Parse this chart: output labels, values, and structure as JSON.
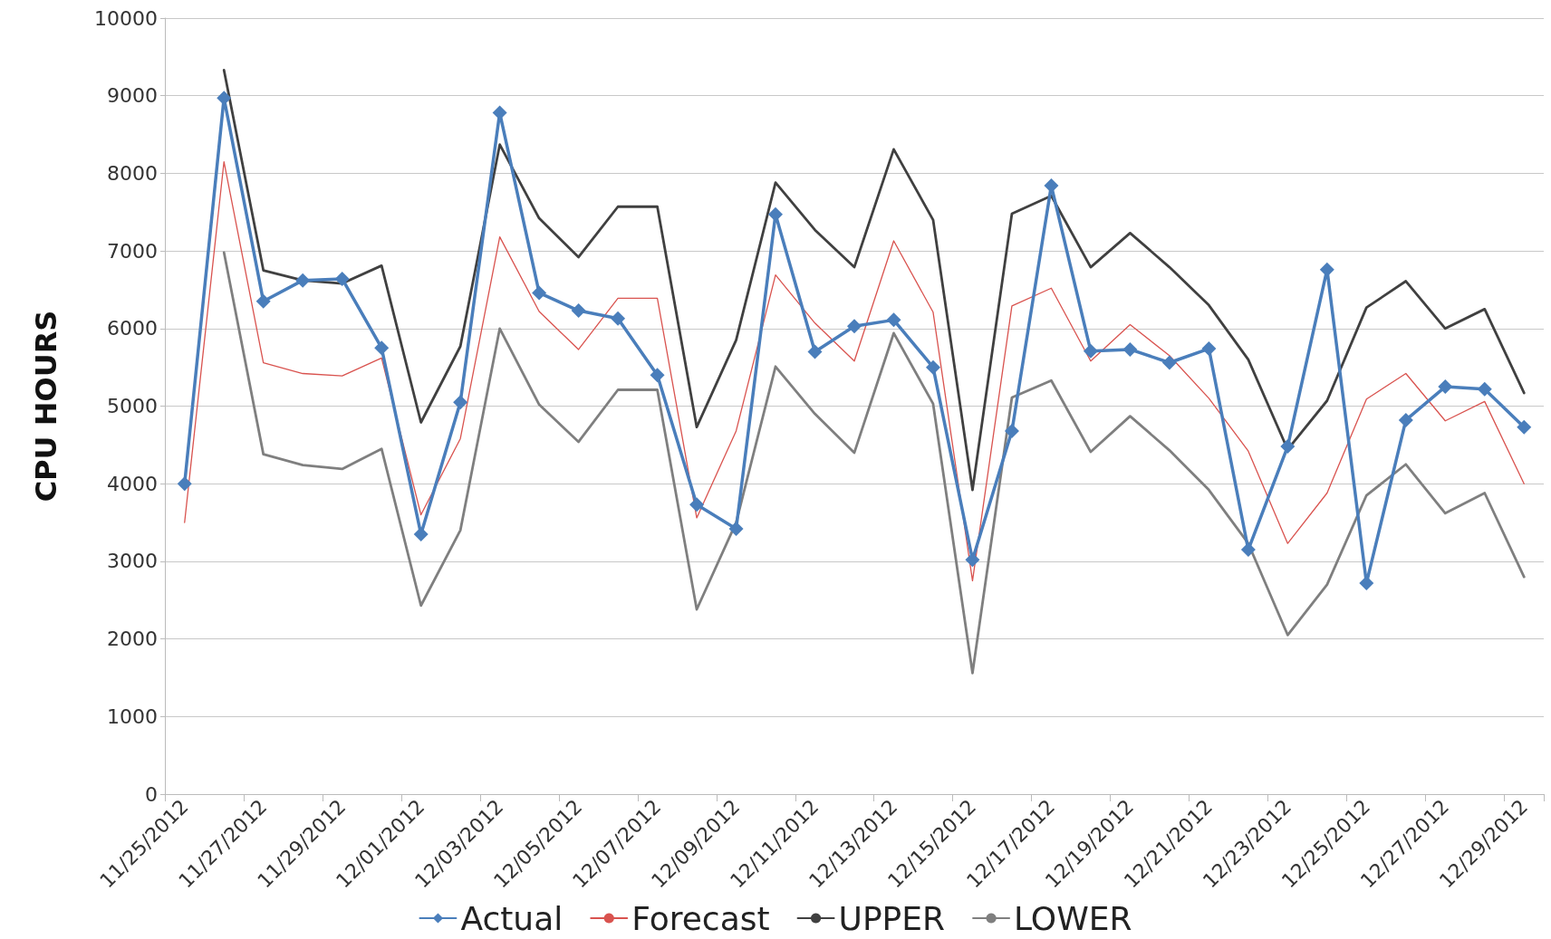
{
  "chart_data": {
    "type": "line",
    "ylabel": "CPU HOURS",
    "categories": [
      "11/25/2012",
      null,
      "11/27/2012",
      null,
      "11/29/2012",
      null,
      "12/01/2012",
      null,
      "12/03/2012",
      null,
      "12/05/2012",
      null,
      "12/07/2012",
      null,
      "12/09/2012",
      null,
      "12/11/2012",
      null,
      "12/13/2012",
      null,
      "12/15/2012",
      null,
      "12/17/2012",
      null,
      "12/19/2012",
      null,
      "12/21/2012",
      null,
      "12/23/2012",
      null,
      "12/25/2012",
      null,
      "12/27/2012",
      null,
      "12/29/2012"
    ],
    "series": [
      {
        "name": "Actual",
        "color": "#4a7ebb",
        "marker": "diamond",
        "values": [
          4000,
          8970,
          6350,
          6620,
          6640,
          5750,
          3350,
          5050,
          8780,
          6460,
          6230,
          6130,
          5400,
          3730,
          3420,
          7470,
          5700,
          6030,
          6110,
          5500,
          3020,
          4680,
          7840,
          5710,
          5730,
          5560,
          5740,
          3150,
          4480,
          6760,
          2720,
          4820,
          5250,
          5220,
          4730
        ]
      },
      {
        "name": "Forecast",
        "color": "#d9534f",
        "values": [
          3500,
          8150,
          5560,
          5420,
          5390,
          5620,
          3600,
          4580,
          7180,
          6220,
          5730,
          6390,
          6390,
          3560,
          4680,
          6690,
          6070,
          5580,
          7130,
          6210,
          2750,
          6290,
          6520,
          5580,
          6050,
          5650,
          5100,
          4420,
          3230,
          3880,
          5090,
          5420,
          4810,
          5060,
          4000
        ]
      },
      {
        "name": "UPPER",
        "color": "#404040",
        "values": [
          null,
          9330,
          6750,
          6620,
          6580,
          6810,
          4790,
          5770,
          8370,
          7420,
          6920,
          7570,
          7570,
          4730,
          5850,
          7880,
          7270,
          6790,
          8310,
          7400,
          3920,
          7480,
          7710,
          6790,
          7230,
          6790,
          6300,
          5600,
          4440,
          5070,
          6270,
          6610,
          6000,
          6250,
          5170
        ]
      },
      {
        "name": "LOWER",
        "color": "#7f7f7f",
        "values": [
          null,
          6980,
          4380,
          4240,
          4190,
          4450,
          2430,
          3400,
          6000,
          5020,
          4540,
          5210,
          5210,
          2380,
          3500,
          5510,
          4900,
          4400,
          5940,
          5030,
          1560,
          5110,
          5330,
          4410,
          4870,
          4430,
          3920,
          3230,
          2050,
          2700,
          3850,
          4250,
          3620,
          3880,
          2800
        ]
      }
    ],
    "ylim": [
      0,
      10000
    ],
    "yticks": [
      0,
      1000,
      2000,
      3000,
      4000,
      5000,
      6000,
      7000,
      8000,
      9000,
      10000
    ],
    "grid": "y",
    "legend": "bottom",
    "marker": "none",
    "line_style": "solid"
  }
}
